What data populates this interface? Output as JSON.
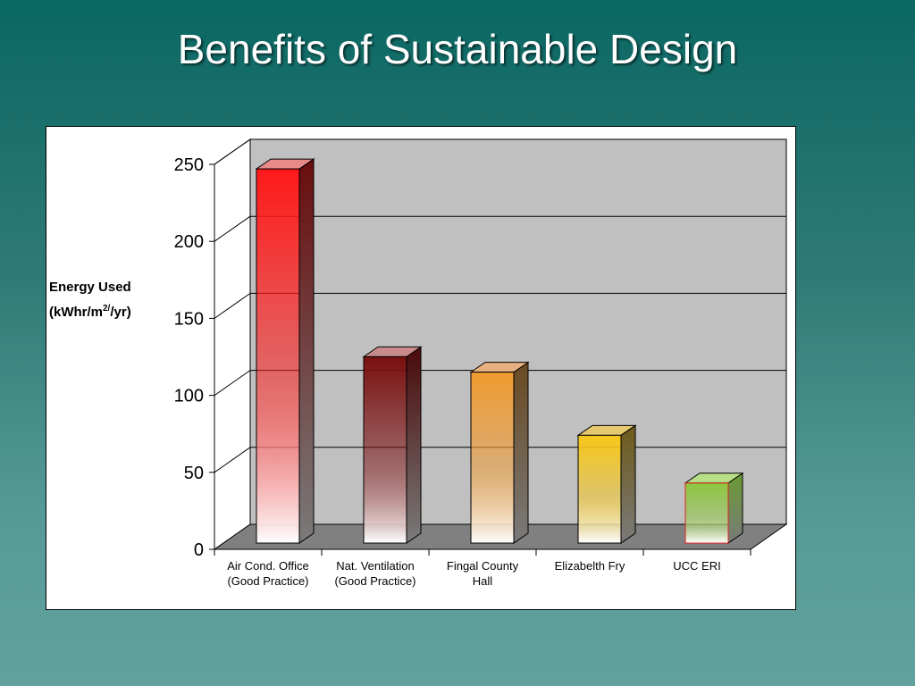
{
  "slide": {
    "title": "Benefits of Sustainable Design"
  },
  "chart_data": {
    "type": "bar",
    "title": "",
    "ylabel_line1": "Energy Used",
    "ylabel_line2_prefix": "(kWhr/m",
    "ylabel_line2_sup": "2/",
    "ylabel_line2_suffix": "/yr)",
    "categories": [
      [
        "Air Cond. Office",
        "(Good Practice)"
      ],
      [
        "Nat. Ventilation",
        "(Good Practice)"
      ],
      [
        "Fingal County",
        "Hall"
      ],
      [
        "Elizabelth Fry"
      ],
      [
        "UCC ERI"
      ]
    ],
    "values": [
      243,
      121,
      111,
      70,
      39
    ],
    "ylim": [
      0,
      250
    ],
    "yticks": [
      0,
      50,
      100,
      150,
      200,
      250
    ],
    "grid": true,
    "bar_colors": [
      "#ff1a1a",
      "#7a1010",
      "#f09a30",
      "#f7c71a",
      "#8dc63f"
    ],
    "bar_side_colors": [
      "#6a0d0d",
      "#4a0a0a",
      "#6a4a22",
      "#6e5a18",
      "#6a9a33"
    ],
    "bar_top_colors": [
      "#e88a8a",
      "#c98a8a",
      "#e8b080",
      "#e6c870",
      "#b8df88"
    ]
  }
}
